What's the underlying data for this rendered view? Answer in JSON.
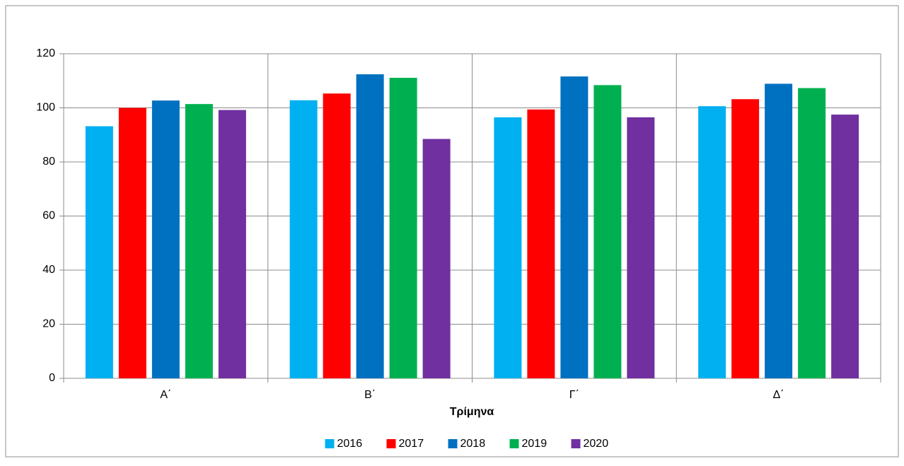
{
  "chart_data": {
    "type": "bar",
    "x_label": "Τρίμηνα",
    "categories": [
      "Α΄",
      "Β΄",
      "Γ΄",
      "Δ΄"
    ],
    "series": [
      {
        "name": "2016",
        "color": "#00b0f0",
        "values": [
          93.2,
          102.8,
          96.5,
          100.6
        ]
      },
      {
        "name": "2017",
        "color": "#ff0000",
        "values": [
          100,
          105.3,
          99.4,
          103.2
        ]
      },
      {
        "name": "2018",
        "color": "#0070c0",
        "values": [
          102.7,
          112.4,
          111.6,
          108.9
        ]
      },
      {
        "name": "2019",
        "color": "#00b050",
        "values": [
          101.4,
          111.1,
          108.4,
          107.3
        ]
      },
      {
        "name": "2020",
        "color": "#7030a0",
        "values": [
          99.2,
          88.5,
          96.5,
          97.5
        ]
      }
    ],
    "ylim": [
      0,
      120
    ],
    "yticks": [
      0,
      20,
      40,
      60,
      80,
      100,
      120
    ],
    "grid": true,
    "legend": "bottom"
  }
}
